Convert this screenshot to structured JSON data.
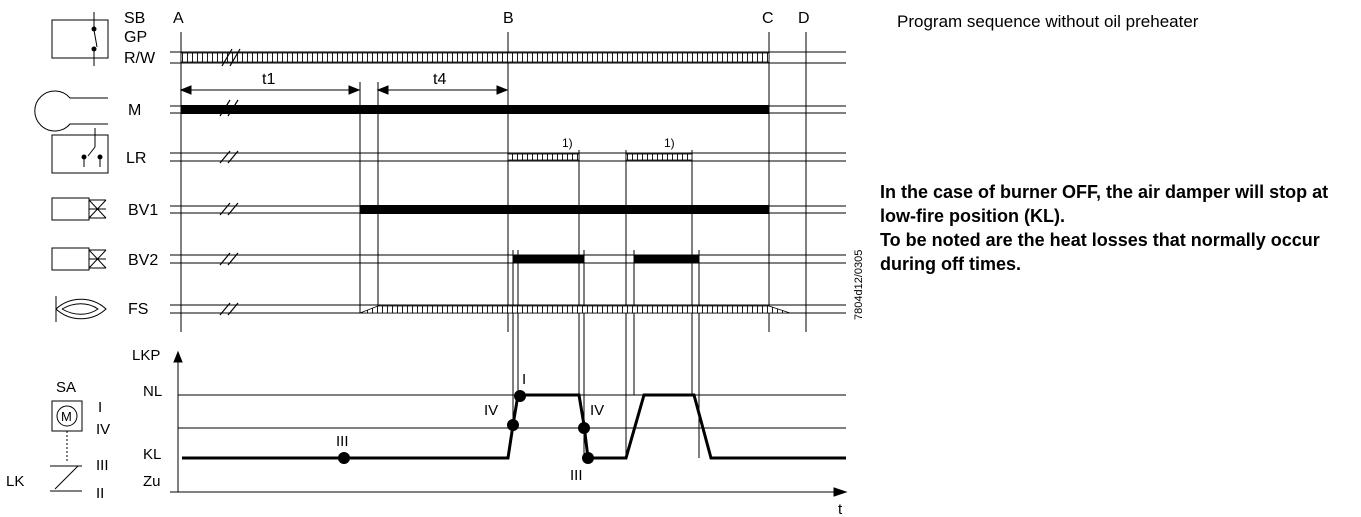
{
  "title": "Program sequence without oil preheater",
  "notes": [
    "In the case of burner OFF, the air damper will stop at low-fire position (KL).",
    "To be noted are the heat losses that normally occur during off times."
  ],
  "document_code": "7804d12/0305",
  "time_points": [
    "A",
    "B",
    "C",
    "D"
  ],
  "time_intervals": [
    "t1",
    "t4"
  ],
  "footnote_marker": "1)",
  "signals": [
    {
      "label": "SB",
      "icon": "switch-icon"
    },
    {
      "label": "GP",
      "icon": "switch-icon"
    },
    {
      "label": "R/W",
      "icon": "switch-icon"
    },
    {
      "label": "M",
      "icon": "fan-motor-icon"
    },
    {
      "label": "LR",
      "icon": "load-controller-icon"
    },
    {
      "label": "BV1",
      "icon": "fuel-valve-icon"
    },
    {
      "label": "BV2",
      "icon": "fuel-valve-icon"
    },
    {
      "label": "FS",
      "icon": "flame-icon"
    }
  ],
  "damper": {
    "axis_label": "LKP",
    "positions": [
      "NL",
      "KL",
      "Zu"
    ],
    "time_axis": "t",
    "actuator_label": "SA",
    "actuator_symbol": "M",
    "damper_label": "LK",
    "switch_labels": [
      "I",
      "IV",
      "III",
      "II"
    ],
    "markers": [
      "III",
      "IV",
      "I",
      "IV",
      "III"
    ]
  }
}
